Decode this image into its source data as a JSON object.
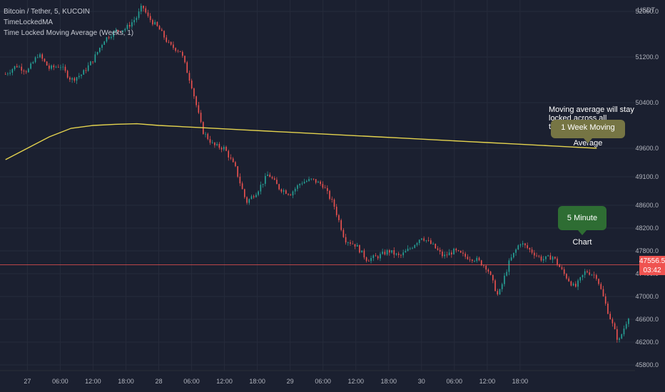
{
  "legend": {
    "symbol": "Bitcoin / Tether, 5, KUCOIN",
    "indicator_name": "TimeLockedMA",
    "indicator_full": "Time Locked Moving Average (Weeks, 1)"
  },
  "currency": "USDT",
  "annotations": {
    "note": "Moving average will stay locked across all timeframes.",
    "ma_callout": "1 Week Moving Average",
    "chart_callout": "5 Minute Chart"
  },
  "current_price": {
    "value": "47556.5",
    "countdown": "03:42"
  },
  "colors": {
    "background": "#1b2030",
    "grid": "#262b3b",
    "up_candle": "#26a69a",
    "down_candle": "#ef5350",
    "ma_line": "#e4d34e",
    "ma_callout": "#767544",
    "chart_callout": "#2e6d33",
    "price_badge": "#ef5350"
  },
  "chart_data": {
    "type": "line",
    "title": "Bitcoin / Tether, 5, KUCOIN",
    "ylim": [
      45700,
      52200
    ],
    "y_ticks": [
      "52000.0",
      "51200.0",
      "50400.0",
      "49600.0",
      "49100.0",
      "48600.0",
      "48200.0",
      "47800.0",
      "47400.0",
      "47000.0",
      "46600.0",
      "46200.0",
      "45800.0"
    ],
    "x_ticks": [
      "27",
      "06:00",
      "12:00",
      "18:00",
      "28",
      "06:00",
      "12:00",
      "18:00",
      "29",
      "06:00",
      "12:00",
      "18:00",
      "30",
      "06:00",
      "12:00",
      "18:00"
    ],
    "x_range_hours": [
      -5,
      111
    ],
    "series": [
      {
        "name": "Bitcoin / Tether",
        "points": [
          [
            -4,
            50900
          ],
          [
            -2,
            51050
          ],
          [
            0,
            50950
          ],
          [
            2,
            51250
          ],
          [
            4,
            51000
          ],
          [
            6,
            51050
          ],
          [
            8,
            50800
          ],
          [
            10,
            50900
          ],
          [
            12,
            51150
          ],
          [
            14,
            51500
          ],
          [
            16,
            51650
          ],
          [
            18,
            51700
          ],
          [
            20,
            51900
          ],
          [
            21,
            52100
          ],
          [
            22,
            51900
          ],
          [
            24,
            51700
          ],
          [
            26,
            51400
          ],
          [
            28,
            51300
          ],
          [
            30,
            50700
          ],
          [
            32,
            49900
          ],
          [
            34,
            49650
          ],
          [
            36,
            49600
          ],
          [
            38,
            49250
          ],
          [
            40,
            48650
          ],
          [
            42,
            48850
          ],
          [
            44,
            49150
          ],
          [
            46,
            48900
          ],
          [
            48,
            48800
          ],
          [
            50,
            49000
          ],
          [
            52,
            49050
          ],
          [
            54,
            48950
          ],
          [
            56,
            48600
          ],
          [
            58,
            48000
          ],
          [
            60,
            47900
          ],
          [
            62,
            47650
          ],
          [
            64,
            47700
          ],
          [
            66,
            47800
          ],
          [
            68,
            47700
          ],
          [
            70,
            47850
          ],
          [
            72,
            48050
          ],
          [
            74,
            47900
          ],
          [
            76,
            47700
          ],
          [
            78,
            47800
          ],
          [
            80,
            47700
          ],
          [
            82,
            47650
          ],
          [
            84,
            47500
          ],
          [
            86,
            47000
          ],
          [
            88,
            47600
          ],
          [
            90,
            47950
          ],
          [
            92,
            47800
          ],
          [
            94,
            47650
          ],
          [
            96,
            47700
          ],
          [
            98,
            47400
          ],
          [
            100,
            47150
          ],
          [
            102,
            47450
          ],
          [
            104,
            47350
          ],
          [
            106,
            46750
          ],
          [
            108,
            46200
          ],
          [
            110,
            46700
          ]
        ]
      },
      {
        "name": "TimeLockedMA",
        "points": [
          [
            -4,
            49400
          ],
          [
            0,
            49600
          ],
          [
            4,
            49800
          ],
          [
            8,
            49950
          ],
          [
            12,
            50000
          ],
          [
            16,
            50020
          ],
          [
            20,
            50030
          ],
          [
            24,
            50000
          ],
          [
            28,
            49980
          ],
          [
            32,
            49960
          ],
          [
            36,
            49940
          ],
          [
            40,
            49920
          ],
          [
            44,
            49900
          ],
          [
            48,
            49880
          ],
          [
            52,
            49860
          ],
          [
            56,
            49840
          ],
          [
            60,
            49820
          ],
          [
            64,
            49800
          ],
          [
            68,
            49780
          ],
          [
            72,
            49760
          ],
          [
            76,
            49740
          ],
          [
            80,
            49720
          ],
          [
            84,
            49700
          ],
          [
            88,
            49680
          ],
          [
            92,
            49660
          ],
          [
            96,
            49640
          ],
          [
            100,
            49620
          ],
          [
            104,
            49600
          ]
        ]
      }
    ]
  }
}
